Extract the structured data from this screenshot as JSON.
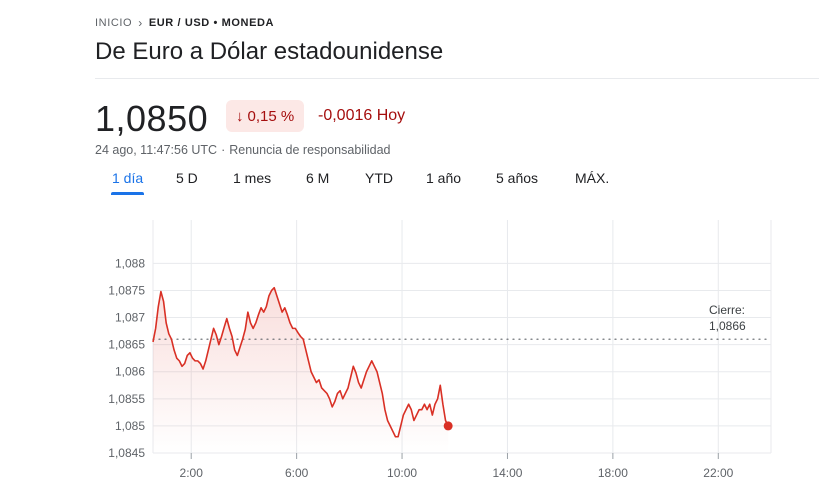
{
  "breadcrumb": {
    "home": "INICIO",
    "separator_icon": "chevron-right",
    "current": "EUR / USD • MONEDA"
  },
  "title": "De Euro a Dólar estadounidense",
  "quote": {
    "price": "1,0850",
    "change_pct": "0,15 %",
    "change_arrow_icon": "arrow-down",
    "change_abs": "-0,0016 Hoy",
    "timestamp": "24 ago, 11:47:56 UTC",
    "separator": "·",
    "disclaimer": "Renuncia de responsabilidad"
  },
  "tabs": [
    {
      "label": "1 día",
      "active": true
    },
    {
      "label": "5 D",
      "active": false
    },
    {
      "label": "1 mes",
      "active": false
    },
    {
      "label": "6 M",
      "active": false
    },
    {
      "label": "YTD",
      "active": false
    },
    {
      "label": "1 año",
      "active": false
    },
    {
      "label": "5 años",
      "active": false
    },
    {
      "label": "MÁX.",
      "active": false
    }
  ],
  "colors": {
    "negative": "#d93025",
    "negative_bg": "#fce8e6",
    "negative_text": "#a50e0e",
    "accent": "#1a73e8",
    "grid": "#e8eaed"
  },
  "chart_data": {
    "type": "area",
    "ylim": [
      1.0845,
      1.0888
    ],
    "xlim": [
      0.55,
      24
    ],
    "yticks": [
      1.0845,
      1.085,
      1.0855,
      1.086,
      1.0865,
      1.087,
      1.0875,
      1.088
    ],
    "ytick_labels": [
      "1,0845",
      "1,085",
      "1,0855",
      "1,086",
      "1,0865",
      "1,087",
      "1,0875",
      "1,088"
    ],
    "xticks": [
      2,
      6,
      10,
      14,
      18,
      22
    ],
    "xtick_labels": [
      "2:00",
      "6:00",
      "10:00",
      "14:00",
      "18:00",
      "22:00"
    ],
    "previous_close": 1.0866,
    "previous_close_label_line1": "Cierre:",
    "previous_close_label_line2": "1,0866",
    "x_unit": "hour (UTC)",
    "series": [
      {
        "values": [
          [
            0.55,
            1.08655
          ],
          [
            0.65,
            1.0868
          ],
          [
            0.75,
            1.0872
          ],
          [
            0.85,
            1.08748
          ],
          [
            0.95,
            1.0873
          ],
          [
            1.05,
            1.0869
          ],
          [
            1.15,
            1.0867
          ],
          [
            1.25,
            1.0866
          ],
          [
            1.35,
            1.0864
          ],
          [
            1.45,
            1.08625
          ],
          [
            1.55,
            1.0862
          ],
          [
            1.65,
            1.0861
          ],
          [
            1.75,
            1.08615
          ],
          [
            1.85,
            1.0863
          ],
          [
            1.95,
            1.08635
          ],
          [
            2.05,
            1.08625
          ],
          [
            2.15,
            1.0862
          ],
          [
            2.25,
            1.0862
          ],
          [
            2.35,
            1.08615
          ],
          [
            2.45,
            1.08605
          ],
          [
            2.55,
            1.0862
          ],
          [
            2.65,
            1.0864
          ],
          [
            2.75,
            1.0866
          ],
          [
            2.85,
            1.0868
          ],
          [
            2.95,
            1.08668
          ],
          [
            3.05,
            1.0865
          ],
          [
            3.15,
            1.08665
          ],
          [
            3.25,
            1.08682
          ],
          [
            3.35,
            1.08698
          ],
          [
            3.45,
            1.0868
          ],
          [
            3.55,
            1.08665
          ],
          [
            3.65,
            1.0864
          ],
          [
            3.75,
            1.0863
          ],
          [
            3.85,
            1.08645
          ],
          [
            3.95,
            1.0866
          ],
          [
            4.05,
            1.08678
          ],
          [
            4.15,
            1.0871
          ],
          [
            4.25,
            1.0869
          ],
          [
            4.35,
            1.0868
          ],
          [
            4.45,
            1.0869
          ],
          [
            4.55,
            1.08705
          ],
          [
            4.65,
            1.08718
          ],
          [
            4.75,
            1.0871
          ],
          [
            4.85,
            1.0872
          ],
          [
            4.95,
            1.0874
          ],
          [
            5.05,
            1.0875
          ],
          [
            5.15,
            1.08755
          ],
          [
            5.25,
            1.0874
          ],
          [
            5.35,
            1.08725
          ],
          [
            5.45,
            1.0871
          ],
          [
            5.55,
            1.08718
          ],
          [
            5.65,
            1.08705
          ],
          [
            5.75,
            1.0869
          ],
          [
            5.85,
            1.0868
          ],
          [
            5.95,
            1.0868
          ],
          [
            6.05,
            1.08672
          ],
          [
            6.15,
            1.08665
          ],
          [
            6.25,
            1.0866
          ],
          [
            6.35,
            1.0864
          ],
          [
            6.45,
            1.0862
          ],
          [
            6.55,
            1.086
          ],
          [
            6.65,
            1.0859
          ],
          [
            6.75,
            1.0858
          ],
          [
            6.85,
            1.08585
          ],
          [
            6.95,
            1.0857
          ],
          [
            7.05,
            1.08565
          ],
          [
            7.15,
            1.0856
          ],
          [
            7.25,
            1.0855
          ],
          [
            7.35,
            1.08535
          ],
          [
            7.45,
            1.08545
          ],
          [
            7.55,
            1.0856
          ],
          [
            7.65,
            1.08565
          ],
          [
            7.75,
            1.0855
          ],
          [
            7.85,
            1.0856
          ],
          [
            7.95,
            1.0857
          ],
          [
            8.05,
            1.0859
          ],
          [
            8.15,
            1.0861
          ],
          [
            8.25,
            1.08598
          ],
          [
            8.35,
            1.0858
          ],
          [
            8.45,
            1.0857
          ],
          [
            8.55,
            1.08585
          ],
          [
            8.65,
            1.086
          ],
          [
            8.75,
            1.0861
          ],
          [
            8.85,
            1.0862
          ],
          [
            8.95,
            1.0861
          ],
          [
            9.05,
            1.086
          ],
          [
            9.15,
            1.0858
          ],
          [
            9.25,
            1.0856
          ],
          [
            9.35,
            1.0853
          ],
          [
            9.45,
            1.0851
          ],
          [
            9.55,
            1.085
          ],
          [
            9.65,
            1.0849
          ],
          [
            9.75,
            1.0848
          ],
          [
            9.85,
            1.0848
          ],
          [
            9.95,
            1.085
          ],
          [
            10.05,
            1.0852
          ],
          [
            10.15,
            1.0853
          ],
          [
            10.25,
            1.0854
          ],
          [
            10.35,
            1.0853
          ],
          [
            10.45,
            1.0851
          ],
          [
            10.55,
            1.0852
          ],
          [
            10.65,
            1.0853
          ],
          [
            10.75,
            1.0853
          ],
          [
            10.85,
            1.0854
          ],
          [
            10.95,
            1.0853
          ],
          [
            11.05,
            1.0854
          ],
          [
            11.15,
            1.0852
          ],
          [
            11.25,
            1.0854
          ],
          [
            11.35,
            1.0855
          ],
          [
            11.45,
            1.08575
          ],
          [
            11.55,
            1.0854
          ],
          [
            11.65,
            1.0851
          ],
          [
            11.75,
            1.085
          ]
        ]
      }
    ]
  }
}
